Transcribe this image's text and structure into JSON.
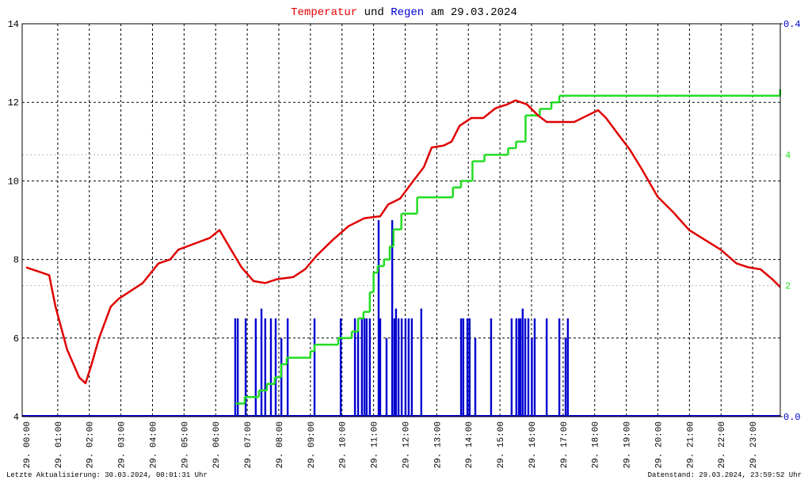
{
  "chart_data": {
    "type": "line",
    "title_parts": [
      "und",
      "am 29.03.2024"
    ],
    "xlim": [
      -0.125,
      23.875
    ],
    "xticks": [
      {
        "value": 0,
        "label": "29. 00:00"
      },
      {
        "value": 1,
        "label": "29. 01:00"
      },
      {
        "value": 2,
        "label": "29. 02:00"
      },
      {
        "value": 3,
        "label": "29. 03:00"
      },
      {
        "value": 4,
        "label": "29. 04:00"
      },
      {
        "value": 5,
        "label": "29. 05:00"
      },
      {
        "value": 6,
        "label": "29. 06:00"
      },
      {
        "value": 7,
        "label": "29. 07:00"
      },
      {
        "value": 8,
        "label": "29. 08:00"
      },
      {
        "value": 9,
        "label": "29. 09:00"
      },
      {
        "value": 10,
        "label": "29. 10:00"
      },
      {
        "value": 11,
        "label": "29. 11:00"
      },
      {
        "value": 12,
        "label": "29. 12:00"
      },
      {
        "value": 13,
        "label": "29. 13:00"
      },
      {
        "value": 14,
        "label": "29. 14:00"
      },
      {
        "value": 15,
        "label": "29. 15:00"
      },
      {
        "value": 16,
        "label": "29. 16:00"
      },
      {
        "value": 17,
        "label": "29. 17:00"
      },
      {
        "value": 18,
        "label": "29. 18:00"
      },
      {
        "value": 19,
        "label": "29. 19:00"
      },
      {
        "value": 20,
        "label": "29. 20:00"
      },
      {
        "value": 21,
        "label": "29. 21:00"
      },
      {
        "value": 22,
        "label": "29. 22:00"
      },
      {
        "value": 23,
        "label": "29. 23:00"
      }
    ],
    "ylim": [
      4,
      14
    ],
    "yticks": [
      4,
      6,
      8,
      10,
      12,
      14
    ],
    "y2lim": [
      0,
      0.4
    ],
    "y2ticks": [
      {
        "value": 0,
        "label": "0.0"
      },
      {
        "value": 0.4,
        "label": "0.4"
      }
    ],
    "y3lim": [
      0,
      6
    ],
    "y3ticks": [
      2,
      4
    ],
    "grid": true,
    "series": [
      {
        "name": "Temperatur",
        "type": "line",
        "color": "#e00000",
        "axis": "y",
        "x": [
          0,
          0.55,
          0.73,
          0.93,
          1.3,
          1.68,
          1.88,
          2.06,
          2.31,
          2.68,
          2.93,
          3.31,
          3.69,
          4.19,
          4.56,
          4.82,
          5.32,
          5.82,
          6.12,
          6.45,
          6.82,
          7.2,
          7.57,
          7.95,
          8.45,
          8.83,
          9.2,
          9.71,
          10.21,
          10.71,
          11.21,
          11.46,
          11.84,
          12.21,
          12.59,
          12.84,
          13.22,
          13.47,
          13.72,
          14.09,
          14.47,
          14.86,
          15.24,
          15.49,
          15.85,
          16.23,
          16.48,
          16.98,
          17.35,
          17.73,
          18.11,
          18.36,
          18.73,
          19.11,
          19.49,
          19.99,
          20.49,
          20.99,
          21.49,
          21.99,
          22.49,
          22.87,
          23.25,
          23.62,
          23.87
        ],
        "values": [
          7.8,
          7.65,
          7.6,
          6.8,
          5.7,
          5.0,
          4.85,
          5.3,
          6.0,
          6.8,
          7.0,
          7.2,
          7.4,
          7.9,
          8.0,
          8.25,
          8.4,
          8.55,
          8.75,
          8.3,
          7.8,
          7.45,
          7.4,
          7.5,
          7.55,
          7.75,
          8.1,
          8.5,
          8.85,
          9.05,
          9.1,
          9.4,
          9.55,
          9.95,
          10.35,
          10.85,
          10.9,
          11.0,
          11.4,
          11.6,
          11.6,
          11.85,
          11.95,
          12.05,
          11.95,
          11.65,
          11.5,
          11.5,
          11.5,
          11.65,
          11.8,
          11.6,
          11.2,
          10.8,
          10.3,
          9.6,
          9.2,
          8.75,
          8.5,
          8.25,
          7.9,
          7.8,
          7.75,
          7.5,
          7.3
        ]
      },
      {
        "name": "Regen",
        "type": "bar",
        "color": "#0000d0",
        "axis": "y2",
        "x": [
          6.62,
          6.7,
          6.95,
          7.27,
          7.45,
          7.57,
          7.75,
          7.9,
          8.08,
          8.28,
          9.13,
          9.96,
          10.41,
          10.51,
          10.63,
          10.71,
          10.78,
          10.88,
          11.16,
          11.21,
          11.41,
          11.59,
          11.66,
          11.71,
          11.79,
          11.89,
          12.01,
          12.11,
          12.21,
          12.51,
          13.77,
          13.84,
          13.97,
          14.04,
          14.22,
          14.72,
          15.37,
          15.52,
          15.6,
          15.65,
          15.72,
          15.8,
          15.9,
          16.01,
          16.1,
          16.48,
          16.88,
          17.08,
          17.15
        ],
        "values": [
          0.1,
          0.1,
          0.1,
          0.1,
          0.11,
          0.1,
          0.1,
          0.1,
          0.08,
          0.1,
          0.1,
          0.1,
          0.1,
          0.1,
          0.1,
          0.1,
          0.1,
          0.1,
          0.2,
          0.1,
          0.08,
          0.2,
          0.1,
          0.11,
          0.1,
          0.1,
          0.1,
          0.1,
          0.1,
          0.11,
          0.1,
          0.1,
          0.1,
          0.1,
          0.08,
          0.1,
          0.1,
          0.1,
          0.1,
          0.1,
          0.11,
          0.1,
          0.1,
          0.08,
          0.1,
          0.1,
          0.1,
          0.08,
          0.1
        ]
      },
      {
        "type": "step",
        "color": "#22dd22",
        "axis": "y3",
        "x": [
          6.62,
          6.92,
          7.37,
          7.62,
          7.87,
          8.07,
          8.25,
          9.0,
          9.13,
          9.88,
          10.31,
          10.51,
          10.68,
          10.88,
          11.0,
          11.13,
          11.33,
          11.51,
          11.63,
          11.88,
          12.38,
          13.51,
          13.77,
          14.13,
          14.51,
          15.26,
          15.51,
          15.81,
          16.26,
          16.63,
          16.88,
          23.87
        ],
        "values": [
          0.2,
          0.3,
          0.4,
          0.5,
          0.6,
          0.8,
          0.9,
          1.0,
          1.1,
          1.2,
          1.3,
          1.5,
          1.6,
          1.9,
          2.2,
          2.3,
          2.4,
          2.6,
          2.86,
          3.1,
          3.35,
          3.5,
          3.6,
          3.9,
          4.0,
          4.1,
          4.2,
          4.6,
          4.7,
          4.8,
          4.9,
          5.0
        ]
      }
    ]
  },
  "footer": {
    "left": "Letzte Aktualisierung: 30.03.2024, 00:01:31 Uhr",
    "right": "Datenstand: 29.03.2024, 23:59:52 Uhr"
  }
}
